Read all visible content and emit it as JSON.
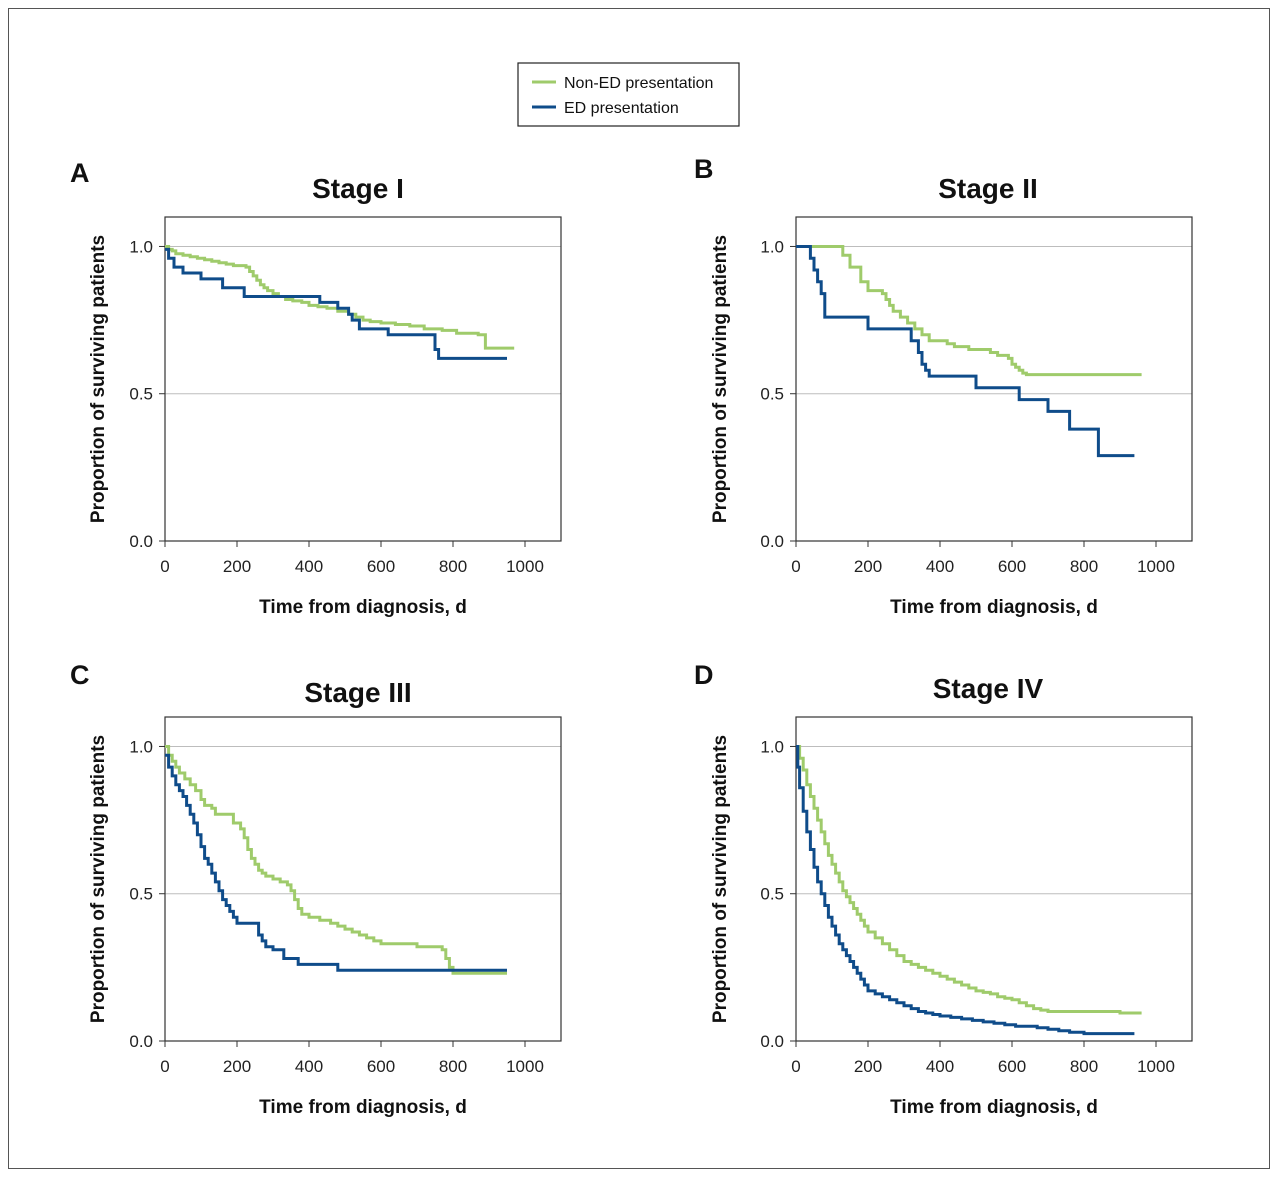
{
  "legend": {
    "entries": [
      {
        "label": "Non-ED presentation",
        "color": "#9fcb6b"
      },
      {
        "label": "ED presentation",
        "color": "#0f4c8a"
      }
    ]
  },
  "chart_data": [
    {
      "type": "line",
      "step": true,
      "panel": "A",
      "title": "Stage I",
      "xlabel": "Time from diagnosis, d",
      "ylabel": "Proportion of surviving patients",
      "xlim": [
        0,
        1100
      ],
      "ylim": [
        0,
        1.1
      ],
      "xticks": [
        "0",
        "200",
        "400",
        "600",
        "800",
        "1000"
      ],
      "yticks": [
        "0.0",
        "0.5",
        "1.0"
      ],
      "gridlines_y": [
        0.5,
        1.0
      ],
      "series": [
        {
          "name": "Non-ED presentation",
          "color": "#9fcb6b",
          "x": [
            0,
            10,
            20,
            30,
            50,
            70,
            90,
            110,
            130,
            150,
            170,
            190,
            210,
            225,
            235,
            245,
            255,
            265,
            275,
            285,
            300,
            315,
            335,
            355,
            380,
            400,
            425,
            450,
            480,
            510,
            530,
            550,
            570,
            600,
            640,
            680,
            720,
            770,
            810,
            870,
            890,
            970
          ],
          "y": [
            1.0,
            0.99,
            0.985,
            0.975,
            0.97,
            0.965,
            0.96,
            0.955,
            0.95,
            0.945,
            0.94,
            0.935,
            0.935,
            0.93,
            0.915,
            0.9,
            0.885,
            0.87,
            0.86,
            0.85,
            0.84,
            0.83,
            0.82,
            0.815,
            0.81,
            0.8,
            0.795,
            0.79,
            0.78,
            0.77,
            0.76,
            0.75,
            0.745,
            0.74,
            0.735,
            0.73,
            0.72,
            0.715,
            0.705,
            0.7,
            0.655,
            0.655
          ]
        },
        {
          "name": "ED presentation",
          "color": "#0f4c8a",
          "x": [
            0,
            10,
            25,
            50,
            100,
            160,
            220,
            300,
            430,
            480,
            510,
            520,
            540,
            620,
            750,
            760,
            950
          ],
          "y": [
            0.99,
            0.96,
            0.93,
            0.91,
            0.89,
            0.86,
            0.83,
            0.83,
            0.81,
            0.79,
            0.77,
            0.75,
            0.72,
            0.7,
            0.65,
            0.62,
            0.62
          ]
        }
      ]
    },
    {
      "type": "line",
      "step": true,
      "panel": "B",
      "title": "Stage II",
      "xlabel": "Time from diagnosis, d",
      "ylabel": "Proportion of surviving patients",
      "xlim": [
        0,
        1100
      ],
      "ylim": [
        0,
        1.1
      ],
      "xticks": [
        "0",
        "200",
        "400",
        "600",
        "800",
        "1000"
      ],
      "yticks": [
        "0.0",
        "0.5",
        "1.0"
      ],
      "gridlines_y": [
        0.5,
        1.0
      ],
      "series": [
        {
          "name": "Non-ED presentation",
          "color": "#9fcb6b",
          "x": [
            0,
            120,
            130,
            150,
            180,
            200,
            240,
            250,
            260,
            270,
            290,
            310,
            330,
            350,
            370,
            400,
            420,
            440,
            480,
            500,
            540,
            560,
            590,
            600,
            610,
            620,
            630,
            640,
            960
          ],
          "y": [
            1.0,
            1.0,
            0.97,
            0.93,
            0.88,
            0.85,
            0.84,
            0.82,
            0.8,
            0.78,
            0.76,
            0.74,
            0.72,
            0.7,
            0.68,
            0.68,
            0.67,
            0.66,
            0.65,
            0.65,
            0.64,
            0.63,
            0.62,
            0.6,
            0.59,
            0.58,
            0.57,
            0.565,
            0.565
          ]
        },
        {
          "name": "ED presentation",
          "color": "#0f4c8a",
          "x": [
            0,
            35,
            40,
            50,
            60,
            70,
            80,
            200,
            320,
            340,
            350,
            360,
            370,
            500,
            620,
            700,
            760,
            840,
            940
          ],
          "y": [
            1.0,
            1.0,
            0.96,
            0.92,
            0.88,
            0.84,
            0.76,
            0.72,
            0.68,
            0.64,
            0.6,
            0.58,
            0.56,
            0.52,
            0.48,
            0.44,
            0.38,
            0.29,
            0.29
          ]
        }
      ]
    },
    {
      "type": "line",
      "step": true,
      "panel": "C",
      "title": "Stage III",
      "xlabel": "Time from diagnosis, d",
      "ylabel": "Proportion of surviving patients",
      "xlim": [
        0,
        1100
      ],
      "ylim": [
        0,
        1.1
      ],
      "xticks": [
        "0",
        "200",
        "400",
        "600",
        "800",
        "1000"
      ],
      "yticks": [
        "0.0",
        "0.5",
        "1.0"
      ],
      "gridlines_y": [
        0.5,
        1.0
      ],
      "series": [
        {
          "name": "Non-ED presentation",
          "color": "#9fcb6b",
          "x": [
            0,
            10,
            20,
            30,
            40,
            55,
            70,
            85,
            100,
            110,
            130,
            140,
            180,
            190,
            210,
            220,
            230,
            240,
            250,
            260,
            270,
            280,
            300,
            320,
            340,
            350,
            360,
            370,
            380,
            400,
            430,
            460,
            480,
            500,
            520,
            540,
            560,
            580,
            600,
            650,
            700,
            730,
            770,
            780,
            790,
            800,
            950
          ],
          "y": [
            1.0,
            0.97,
            0.95,
            0.93,
            0.91,
            0.89,
            0.87,
            0.85,
            0.82,
            0.8,
            0.79,
            0.77,
            0.77,
            0.74,
            0.72,
            0.69,
            0.65,
            0.62,
            0.6,
            0.58,
            0.57,
            0.56,
            0.55,
            0.54,
            0.53,
            0.51,
            0.48,
            0.45,
            0.43,
            0.42,
            0.41,
            0.4,
            0.39,
            0.38,
            0.37,
            0.36,
            0.35,
            0.34,
            0.33,
            0.33,
            0.32,
            0.32,
            0.31,
            0.28,
            0.25,
            0.23,
            0.23
          ]
        },
        {
          "name": "ED presentation",
          "color": "#0f4c8a",
          "x": [
            0,
            10,
            20,
            30,
            40,
            50,
            60,
            70,
            80,
            90,
            100,
            110,
            120,
            130,
            140,
            150,
            160,
            170,
            180,
            190,
            200,
            220,
            260,
            270,
            280,
            300,
            330,
            370,
            420,
            480,
            600,
            700,
            800,
            950
          ],
          "y": [
            0.97,
            0.93,
            0.9,
            0.87,
            0.85,
            0.83,
            0.8,
            0.77,
            0.74,
            0.7,
            0.66,
            0.62,
            0.6,
            0.57,
            0.54,
            0.51,
            0.48,
            0.46,
            0.44,
            0.42,
            0.4,
            0.4,
            0.36,
            0.34,
            0.32,
            0.31,
            0.28,
            0.26,
            0.26,
            0.24,
            0.24,
            0.24,
            0.24,
            0.24
          ]
        }
      ]
    },
    {
      "type": "line",
      "step": true,
      "panel": "D",
      "title": "Stage IV",
      "xlabel": "Time from diagnosis, d",
      "ylabel": "Proportion of surviving patients",
      "xlim": [
        0,
        1100
      ],
      "ylim": [
        0,
        1.1
      ],
      "xticks": [
        "0",
        "200",
        "400",
        "600",
        "800",
        "1000"
      ],
      "yticks": [
        "0.0",
        "0.5",
        "1.0"
      ],
      "gridlines_y": [
        0.5,
        1.0
      ],
      "series": [
        {
          "name": "Non-ED presentation",
          "color": "#9fcb6b",
          "x": [
            0,
            10,
            20,
            30,
            40,
            50,
            60,
            70,
            80,
            90,
            100,
            110,
            120,
            130,
            140,
            150,
            160,
            170,
            180,
            190,
            200,
            220,
            240,
            260,
            280,
            300,
            320,
            340,
            360,
            380,
            400,
            420,
            440,
            460,
            480,
            500,
            520,
            540,
            560,
            580,
            600,
            620,
            640,
            660,
            680,
            700,
            750,
            800,
            850,
            900,
            960
          ],
          "y": [
            1.0,
            0.96,
            0.92,
            0.87,
            0.83,
            0.79,
            0.75,
            0.71,
            0.67,
            0.63,
            0.6,
            0.57,
            0.54,
            0.51,
            0.49,
            0.47,
            0.45,
            0.43,
            0.41,
            0.39,
            0.37,
            0.35,
            0.33,
            0.31,
            0.29,
            0.27,
            0.26,
            0.25,
            0.24,
            0.23,
            0.22,
            0.21,
            0.2,
            0.19,
            0.18,
            0.17,
            0.165,
            0.16,
            0.15,
            0.145,
            0.14,
            0.13,
            0.12,
            0.11,
            0.105,
            0.1,
            0.1,
            0.1,
            0.1,
            0.095,
            0.095
          ]
        },
        {
          "name": "ED presentation",
          "color": "#0f4c8a",
          "x": [
            0,
            5,
            10,
            20,
            30,
            40,
            50,
            60,
            70,
            80,
            90,
            100,
            110,
            120,
            130,
            140,
            150,
            160,
            170,
            180,
            190,
            200,
            220,
            240,
            260,
            280,
            300,
            320,
            340,
            360,
            380,
            400,
            430,
            460,
            490,
            520,
            550,
            580,
            610,
            640,
            670,
            700,
            730,
            760,
            800,
            850,
            900,
            940
          ],
          "y": [
            1.0,
            0.93,
            0.86,
            0.78,
            0.71,
            0.65,
            0.59,
            0.54,
            0.5,
            0.46,
            0.42,
            0.39,
            0.36,
            0.33,
            0.31,
            0.29,
            0.27,
            0.25,
            0.23,
            0.21,
            0.19,
            0.17,
            0.16,
            0.15,
            0.14,
            0.13,
            0.12,
            0.11,
            0.1,
            0.095,
            0.09,
            0.085,
            0.08,
            0.075,
            0.07,
            0.065,
            0.06,
            0.055,
            0.05,
            0.05,
            0.045,
            0.04,
            0.035,
            0.03,
            0.025,
            0.025,
            0.025,
            0.025
          ]
        }
      ]
    }
  ]
}
